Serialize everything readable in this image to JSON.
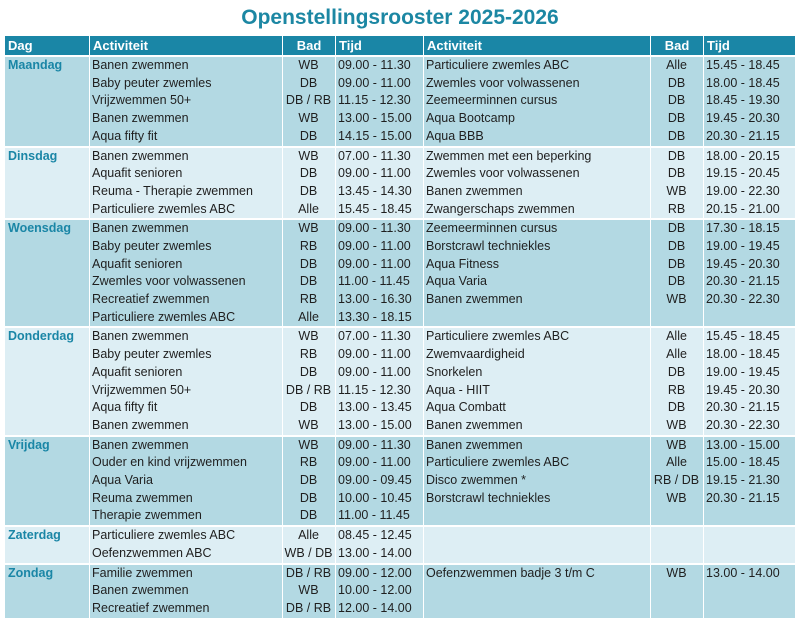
{
  "title": "Openstellingsrooster 2025-2026",
  "headers": {
    "dag": "Dag",
    "activiteit1": "Activiteit",
    "bad1": "Bad",
    "tijd1": "Tijd",
    "activiteit2": "Activiteit",
    "bad2": "Bad",
    "tijd2": "Tijd"
  },
  "days": [
    {
      "day": "Maandag",
      "rows": [
        {
          "a1": "Banen zwemmen",
          "b1": "WB",
          "t1": "09.00 - 11.30",
          "a2": "Particuliere zwemles ABC",
          "b2": "Alle",
          "t2": "15.45 - 18.45"
        },
        {
          "a1": "Baby peuter zwemles",
          "b1": "DB",
          "t1": "09.00 - 11.00",
          "a2": "Zwemles voor volwassenen",
          "b2": "DB",
          "t2": "18.00 - 18.45"
        },
        {
          "a1": "Vrijzwemmen 50+",
          "b1": "DB / RB",
          "t1": "11.15 - 12.30",
          "a2": "Zeemeerminnen cursus",
          "b2": "DB",
          "t2": "18.45 - 19.30"
        },
        {
          "a1": "Banen zwemmen",
          "b1": "WB",
          "t1": "13.00 - 15.00",
          "a2": "Aqua Bootcamp",
          "b2": "DB",
          "t2": "19.45 - 20.30"
        },
        {
          "a1": "Aqua fifty fit",
          "b1": "DB",
          "t1": "14.15 - 15.00",
          "a2": "Aqua BBB",
          "b2": "DB",
          "t2": "20.30 - 21.15"
        }
      ]
    },
    {
      "day": "Dinsdag",
      "rows": [
        {
          "a1": "Banen zwemmen",
          "b1": "WB",
          "t1": "07.00 - 11.30",
          "a2": "Zwemmen met een beperking",
          "b2": "DB",
          "t2": "18.00 - 20.15"
        },
        {
          "a1": "Aquafit senioren",
          "b1": "DB",
          "t1": "09.00 - 11.00",
          "a2": "Zwemles voor volwassenen",
          "b2": "DB",
          "t2": "19.15 - 20.45"
        },
        {
          "a1": "Reuma - Therapie zwemmen",
          "b1": "DB",
          "t1": "13.45 - 14.30",
          "a2": "Banen zwemmen",
          "b2": "WB",
          "t2": "19.00 - 22.30"
        },
        {
          "a1": "Particuliere zwemles ABC",
          "b1": "Alle",
          "t1": "15.45 - 18.45",
          "a2": "Zwangerschaps zwemmen",
          "b2": "RB",
          "t2": "20.15 - 21.00"
        }
      ]
    },
    {
      "day": "Woensdag",
      "rows": [
        {
          "a1": "Banen zwemmen",
          "b1": "WB",
          "t1": "09.00 - 11.30",
          "a2": "Zeemeerminnen cursus",
          "b2": "DB",
          "t2": "17.30 - 18.15"
        },
        {
          "a1": "Baby peuter zwemles",
          "b1": "RB",
          "t1": "09.00 - 11.00",
          "a2": "Borstcrawl techniekles",
          "b2": "DB",
          "t2": "19.00 - 19.45"
        },
        {
          "a1": "Aquafit senioren",
          "b1": "DB",
          "t1": "09.00 - 11.00",
          "a2": "Aqua Fitness",
          "b2": "DB",
          "t2": "19.45 - 20.30"
        },
        {
          "a1": "Zwemles voor volwassenen",
          "b1": "DB",
          "t1": "11.00 - 11.45",
          "a2": "Aqua Varia",
          "b2": "DB",
          "t2": "20.30 - 21.15"
        },
        {
          "a1": "Recreatief zwemmen",
          "b1": "RB",
          "t1": "13.00 - 16.30",
          "a2": "Banen zwemmen",
          "b2": "WB",
          "t2": "20.30 - 22.30"
        },
        {
          "a1": "Particuliere zwemles ABC",
          "b1": "Alle",
          "t1": "13.30 - 18.15",
          "a2": "",
          "b2": "",
          "t2": ""
        }
      ]
    },
    {
      "day": "Donderdag",
      "rows": [
        {
          "a1": "Banen zwemmen",
          "b1": "WB",
          "t1": "07.00 - 11.30",
          "a2": "Particuliere zwemles ABC",
          "b2": "Alle",
          "t2": "15.45 - 18.45"
        },
        {
          "a1": "Baby peuter zwemles",
          "b1": "RB",
          "t1": "09.00 - 11.00",
          "a2": "Zwemvaardigheid",
          "b2": "Alle",
          "t2": "18.00 - 18.45"
        },
        {
          "a1": "Aquafit senioren",
          "b1": "DB",
          "t1": "09.00 - 11.00",
          "a2": "Snorkelen",
          "b2": "DB",
          "t2": "19.00 - 19.45"
        },
        {
          "a1": "Vrijzwemmen 50+",
          "b1": "DB / RB",
          "t1": "11.15 - 12.30",
          "a2": "Aqua - HIIT",
          "b2": "RB",
          "t2": "19.45 - 20.30"
        },
        {
          "a1": "Aqua fifty fit",
          "b1": "DB",
          "t1": "13.00 - 13.45",
          "a2": "Aqua Combatt",
          "b2": "DB",
          "t2": "20.30 - 21.15"
        },
        {
          "a1": "Banen zwemmen",
          "b1": "WB",
          "t1": "13.00 - 15.00",
          "a2": "Banen zwemmen",
          "b2": "WB",
          "t2": "20.30 - 22.30"
        }
      ]
    },
    {
      "day": "Vrijdag",
      "rows": [
        {
          "a1": "Banen zwemmen",
          "b1": "WB",
          "t1": "09.00 - 11.30",
          "a2": "Banen zwemmen",
          "b2": "WB",
          "t2": "13.00 - 15.00"
        },
        {
          "a1": "Ouder en kind vrijzwemmen",
          "b1": "RB",
          "t1": "09.00 - 11.00",
          "a2": "Particuliere zwemles ABC",
          "b2": "Alle",
          "t2": "15.00 - 18.45"
        },
        {
          "a1": "Aqua Varia",
          "b1": "DB",
          "t1": "09.00 - 09.45",
          "a2": "Disco zwemmen *",
          "b2": "RB / DB",
          "t2": "19.15 - 21.30"
        },
        {
          "a1": "Reuma zwemmen",
          "b1": "DB",
          "t1": "10.00 - 10.45",
          "a2": "Borstcrawl techniekles",
          "b2": "WB",
          "t2": "20.30 - 21.15"
        },
        {
          "a1": "Therapie zwemmen",
          "b1": "DB",
          "t1": "11.00 - 11.45",
          "a2": "",
          "b2": "",
          "t2": ""
        }
      ]
    },
    {
      "day": "Zaterdag",
      "rows": [
        {
          "a1": "Particuliere zwemles ABC",
          "b1": "Alle",
          "t1": "08.45 - 12.45",
          "a2": "",
          "b2": "",
          "t2": ""
        },
        {
          "a1": "Oefenzwemmen ABC",
          "b1": "WB / DB",
          "t1": "13.00 - 14.00",
          "a2": "",
          "b2": "",
          "t2": ""
        }
      ]
    },
    {
      "day": "Zondag",
      "rows": [
        {
          "a1": "Familie zwemmen",
          "b1": "DB / RB",
          "t1": "09.00 - 12.00",
          "a2": "Oefenzwemmen badje 3 t/m C",
          "b2": "WB",
          "t2": "13.00 - 14.00"
        },
        {
          "a1": "Banen zwemmen",
          "b1": "WB",
          "t1": "10.00 - 12.00",
          "a2": "",
          "b2": "",
          "t2": ""
        },
        {
          "a1": "Recreatief zwemmen",
          "b1": "DB / RB",
          "t1": "12.00 - 14.00",
          "a2": "",
          "b2": "",
          "t2": ""
        }
      ]
    }
  ]
}
